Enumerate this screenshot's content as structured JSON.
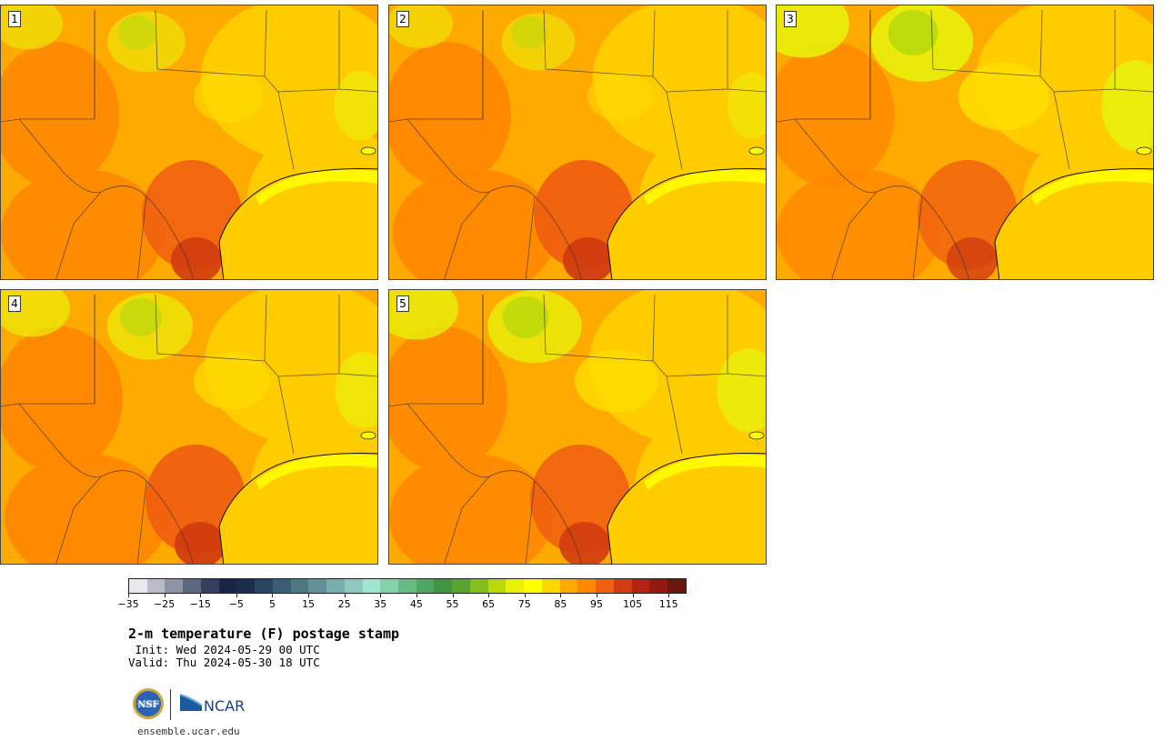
{
  "panels": [
    {
      "label": "1",
      "hot": 0.55,
      "cool": 0.25
    },
    {
      "label": "2",
      "hot": 0.6,
      "cool": 0.2
    },
    {
      "label": "3",
      "hot": 0.45,
      "cool": 0.55
    },
    {
      "label": "4",
      "hot": 0.6,
      "cool": 0.35
    },
    {
      "label": "5",
      "hot": 0.55,
      "cool": 0.45
    }
  ],
  "colorbar": {
    "min": -35,
    "max": 120,
    "step": 5,
    "tick_labels": [
      "−35",
      "−25",
      "−15",
      "−5",
      "5",
      "15",
      "25",
      "35",
      "45",
      "55",
      "65",
      "75",
      "85",
      "95",
      "105",
      "115"
    ],
    "colors": [
      "#e6e9ef",
      "#b9bdc9",
      "#8e94a6",
      "#5e6780",
      "#353f5e",
      "#1b2444",
      "#1c2b48",
      "#2a4560",
      "#3b5e74",
      "#4f7884",
      "#639198",
      "#78aeae",
      "#8ccabf",
      "#9ee6cf",
      "#82d2ab",
      "#66bb85",
      "#4ea663",
      "#3f963f",
      "#56a52d",
      "#84bd1c",
      "#b9d90d",
      "#e9f00a",
      "#ffff00",
      "#ffd700",
      "#ffaa00",
      "#ff8800",
      "#f06010",
      "#d13c10",
      "#b52210",
      "#931a10",
      "#6b1710"
    ]
  },
  "title": "2-m temperature (F) postage stamp",
  "init": " Init: Wed 2024-05-29 00 UTC",
  "valid": "Valid: Thu 2024-05-30 18 UTC",
  "logos": {
    "nsf": "NSF",
    "ncar": "NCAR"
  },
  "site": "ensemble.ucar.edu"
}
